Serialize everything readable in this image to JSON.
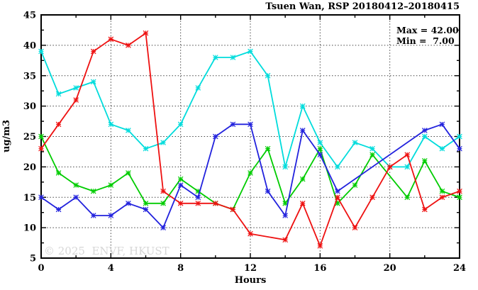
{
  "header": {
    "title": "Tsuen Wan, RSP 20180412–20180415"
  },
  "annotation": {
    "max_label": "Max = 42.00",
    "min_label": "Min =  7.00"
  },
  "watermark": "© 2025  ENVF, HKUST",
  "chart_data": {
    "type": "line",
    "title": "Tsuen Wan, RSP 20180412–20180415",
    "xlabel": "Hours",
    "ylabel": "ug/m3",
    "xlim": [
      0,
      24
    ],
    "ylim": [
      5,
      45
    ],
    "x_major_ticks": [
      0,
      4,
      8,
      12,
      16,
      20,
      24
    ],
    "x_minor_ticks": [
      2,
      6,
      10,
      14,
      18,
      22
    ],
    "y_major_ticks": [
      5,
      10,
      15,
      20,
      25,
      30,
      35,
      40,
      45
    ],
    "y_minor_ticks": [
      7.5,
      12.5,
      17.5,
      22.5,
      27.5,
      32.5,
      37.5,
      42.5
    ],
    "x_grid_at": [
      4,
      8,
      12,
      16,
      20
    ],
    "y_grid_at": [
      10,
      15,
      20,
      25,
      30,
      35,
      40
    ],
    "grid": true,
    "legend_position": "none",
    "marker": "asterisk",
    "stats": {
      "max": 42.0,
      "min": 7.0
    },
    "series": [
      {
        "name": "cyan-series",
        "color": "#00dcdc",
        "points": [
          [
            0,
            39
          ],
          [
            1,
            32
          ],
          [
            2,
            33
          ],
          [
            3,
            34
          ],
          [
            4,
            27
          ],
          [
            5,
            26
          ],
          [
            6,
            23
          ],
          [
            7,
            24
          ],
          [
            8,
            27
          ],
          [
            9,
            33
          ],
          [
            10,
            38
          ],
          [
            11,
            38
          ],
          [
            12,
            39
          ],
          [
            13,
            35
          ],
          [
            14,
            20
          ],
          [
            15,
            30
          ],
          [
            16,
            24
          ],
          [
            17,
            20
          ],
          [
            18,
            24
          ],
          [
            19,
            23
          ],
          [
            20,
            20
          ],
          [
            21,
            20
          ],
          [
            22,
            25
          ],
          [
            23,
            23
          ],
          [
            24,
            25
          ]
        ]
      },
      {
        "name": "green-series",
        "color": "#00cc00",
        "points": [
          [
            0,
            25
          ],
          [
            1,
            19
          ],
          [
            2,
            17
          ],
          [
            3,
            16
          ],
          [
            4,
            17
          ],
          [
            5,
            19
          ],
          [
            6,
            14
          ],
          [
            7,
            14
          ],
          [
            8,
            18
          ],
          [
            9,
            16
          ],
          [
            10,
            14
          ],
          [
            11,
            13
          ],
          [
            12,
            19
          ],
          [
            13,
            23
          ],
          [
            14,
            14
          ],
          [
            15,
            18
          ],
          [
            16,
            23
          ],
          [
            17,
            14
          ],
          [
            18,
            17
          ],
          [
            19,
            22
          ],
          [
            21,
            15
          ],
          [
            22,
            21
          ],
          [
            23,
            16
          ],
          [
            24,
            15
          ]
        ]
      },
      {
        "name": "red-series",
        "color": "#ee1111",
        "points": [
          [
            0,
            23
          ],
          [
            1,
            27
          ],
          [
            2,
            31
          ],
          [
            3,
            39
          ],
          [
            4,
            41
          ],
          [
            5,
            40
          ],
          [
            6,
            42
          ],
          [
            7,
            16
          ],
          [
            8,
            14
          ],
          [
            9,
            14
          ],
          [
            10,
            14
          ],
          [
            11,
            13
          ],
          [
            12,
            9
          ],
          [
            14,
            8
          ],
          [
            15,
            14
          ],
          [
            16,
            7
          ],
          [
            17,
            15
          ],
          [
            18,
            10
          ],
          [
            19,
            15
          ],
          [
            20,
            20
          ],
          [
            21,
            22
          ],
          [
            22,
            13
          ],
          [
            23,
            15
          ],
          [
            24,
            16
          ]
        ]
      },
      {
        "name": "blue-series",
        "color": "#2222dd",
        "points": [
          [
            0,
            15
          ],
          [
            1,
            13
          ],
          [
            2,
            15
          ],
          [
            3,
            12
          ],
          [
            4,
            12
          ],
          [
            5,
            14
          ],
          [
            6,
            13
          ],
          [
            7,
            10
          ],
          [
            8,
            17
          ],
          [
            9,
            15
          ],
          [
            10,
            25
          ],
          [
            11,
            27
          ],
          [
            12,
            27
          ],
          [
            13,
            16
          ],
          [
            14,
            12
          ],
          [
            15,
            26
          ],
          [
            16,
            22
          ],
          [
            17,
            16
          ],
          [
            22,
            26
          ],
          [
            23,
            27
          ],
          [
            24,
            23
          ]
        ]
      }
    ]
  }
}
